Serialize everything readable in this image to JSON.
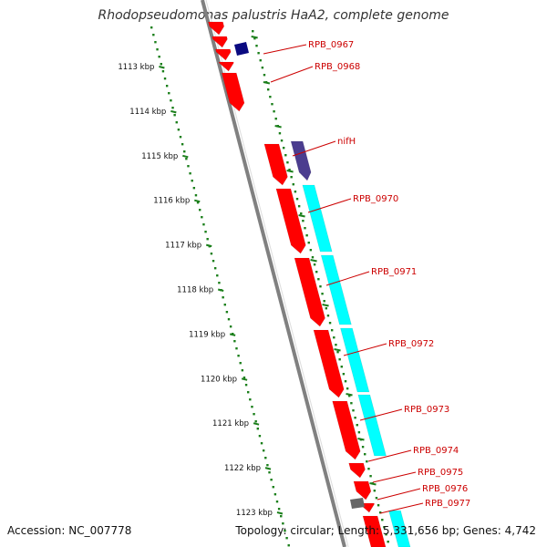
{
  "title": "Rhodopseudomonas palustris HaA2, complete genome",
  "footer": {
    "accession": "Accession: NC_007778",
    "summary": "Topology: circular; Length: 5,331,656 bp; Genes: 4,742"
  },
  "colors": {
    "strand_forward": "#ff0000",
    "strand_reverse_cyan": "#00ffff",
    "strand_navy": "#0a0a80",
    "strand_purple": "#4b3d8f",
    "strand_gray": "#666666",
    "backbone": "#808080",
    "tick_green": "#1b7f1b",
    "label_red": "#cc0000"
  },
  "kbp_ticks": [
    {
      "label": "1113 kbp",
      "kbp": 1113
    },
    {
      "label": "1114 kbp",
      "kbp": 1114
    },
    {
      "label": "1115 kbp",
      "kbp": 1115
    },
    {
      "label": "1116 kbp",
      "kbp": 1116
    },
    {
      "label": "1117 kbp",
      "kbp": 1117
    },
    {
      "label": "1118 kbp",
      "kbp": 1118
    },
    {
      "label": "1119 kbp",
      "kbp": 1119
    },
    {
      "label": "1120 kbp",
      "kbp": 1120
    },
    {
      "label": "1121 kbp",
      "kbp": 1121
    },
    {
      "label": "1122 kbp",
      "kbp": 1122
    },
    {
      "label": "1123 kbp",
      "kbp": 1123
    }
  ],
  "genes": [
    {
      "label": "RPB_0967"
    },
    {
      "label": "RPB_0968"
    },
    {
      "label": "nifH"
    },
    {
      "label": "RPB_0970"
    },
    {
      "label": "RPB_0971"
    },
    {
      "label": "RPB_0972"
    },
    {
      "label": "RPB_0973"
    },
    {
      "label": "RPB_0974"
    },
    {
      "label": "RPB_0975"
    },
    {
      "label": "RPB_0976"
    },
    {
      "label": "RPB_0977"
    }
  ]
}
